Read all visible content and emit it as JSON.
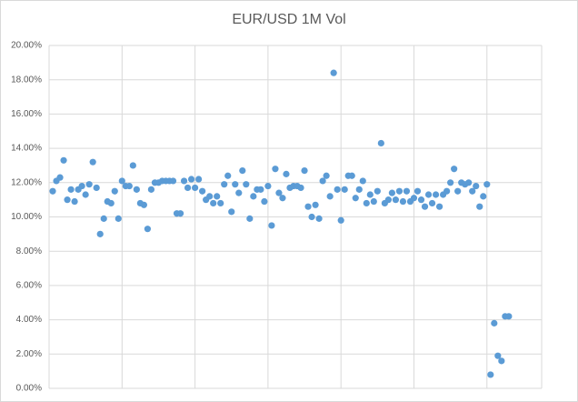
{
  "chart_data": {
    "type": "scatter",
    "title": "EUR/USD 1M Vol",
    "color": "#5b9bd5",
    "grid": true,
    "xlim": [
      0,
      135
    ],
    "xticks": [
      0,
      20,
      40,
      60,
      80,
      100,
      120
    ],
    "ylim": [
      0,
      20
    ],
    "yticks": [
      {
        "value": 0,
        "label": "0.00%"
      },
      {
        "value": 2,
        "label": "2.00%"
      },
      {
        "value": 4,
        "label": "4.00%"
      },
      {
        "value": 6,
        "label": "6.00%"
      },
      {
        "value": 8,
        "label": "8.00%"
      },
      {
        "value": 10,
        "label": "10.00%"
      },
      {
        "value": 12,
        "label": "12.00%"
      },
      {
        "value": 14,
        "label": "14.00%"
      },
      {
        "value": 16,
        "label": "16.00%"
      },
      {
        "value": 18,
        "label": "18.00%"
      },
      {
        "value": 20,
        "label": "20.00%"
      }
    ],
    "x": [
      1,
      2,
      3,
      4,
      5,
      6,
      7,
      8,
      9,
      10,
      11,
      12,
      13,
      14,
      15,
      16,
      17,
      18,
      19,
      20,
      21,
      22,
      23,
      24,
      25,
      26,
      27,
      28,
      29,
      30,
      31,
      32,
      33,
      34,
      35,
      36,
      37,
      38,
      39,
      40,
      41,
      42,
      43,
      44,
      45,
      46,
      47,
      48,
      49,
      50,
      51,
      52,
      53,
      54,
      55,
      56,
      57,
      58,
      59,
      60,
      61,
      62,
      63,
      64,
      65,
      66,
      67,
      68,
      69,
      70,
      71,
      72,
      73,
      74,
      75,
      76,
      77,
      78,
      79,
      80,
      81,
      82,
      83,
      84,
      85,
      86,
      87,
      88,
      89,
      90,
      91,
      92,
      93,
      94,
      95,
      96,
      97,
      98,
      99,
      100,
      101,
      102,
      103,
      104,
      105,
      106,
      107,
      108,
      109,
      110,
      111,
      112,
      113,
      114,
      115,
      116,
      117,
      118,
      119,
      120,
      121,
      122,
      123,
      124,
      125,
      126
    ],
    "values": [
      11.5,
      12.1,
      12.3,
      13.3,
      11.0,
      11.6,
      10.9,
      11.6,
      11.8,
      11.3,
      11.9,
      13.2,
      11.7,
      9.0,
      9.9,
      10.9,
      10.8,
      11.5,
      9.9,
      12.1,
      11.8,
      11.8,
      13.0,
      11.6,
      10.8,
      10.7,
      9.3,
      11.6,
      12.0,
      12.0,
      12.1,
      12.1,
      12.1,
      12.1,
      10.2,
      10.2,
      12.1,
      11.7,
      12.2,
      11.7,
      12.2,
      11.5,
      11.0,
      11.2,
      10.8,
      11.2,
      10.8,
      11.9,
      12.4,
      10.3,
      11.9,
      11.4,
      12.7,
      11.9,
      9.9,
      11.2,
      11.6,
      11.6,
      10.9,
      11.8,
      9.5,
      12.8,
      11.4,
      11.1,
      12.5,
      11.7,
      11.8,
      11.8,
      11.7,
      12.7,
      10.6,
      10.0,
      10.7,
      9.9,
      12.1,
      12.4,
      11.2,
      18.4,
      11.6,
      9.8,
      11.6,
      12.4,
      12.4,
      11.1,
      11.6,
      12.1,
      10.8,
      11.3,
      10.9,
      11.5,
      14.3,
      10.8,
      11.0,
      11.4,
      11.0,
      11.5,
      10.9,
      11.5,
      10.9,
      11.1,
      11.5,
      11.0,
      10.6,
      11.3,
      10.8,
      11.3,
      10.6,
      11.3,
      11.5,
      12.0,
      12.8,
      11.5,
      12.0,
      11.9,
      12.0,
      11.5,
      11.8,
      10.6,
      11.2,
      11.9,
      0.8,
      3.8,
      1.9,
      1.6,
      4.2,
      4.2
    ]
  }
}
